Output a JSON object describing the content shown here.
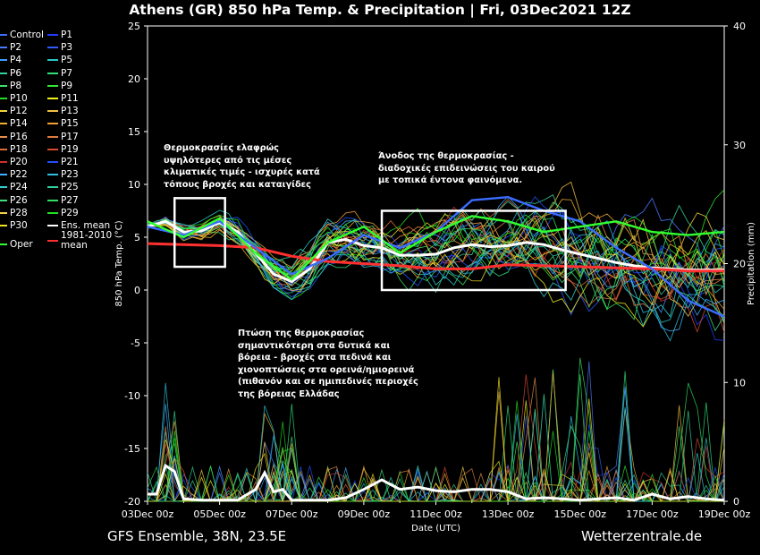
{
  "title": "Athens  (GR)  850 hPa Temp. & Precipitation | Fri, 03Dec2021 12Z",
  "footer_left": "GFS Ensemble, 38N, 23.5E",
  "footer_right": "Wetterzentrale.de",
  "annotations": [
    {
      "text_lines": [
        "Θερμοκρασίες ελαφρώς",
        "υψηλότερες από τις μέσες",
        "κλιματικές τιμές - ισχυρές κατά",
        "τόπους βροχές και καταιγίδες"
      ]
    },
    {
      "text_lines": [
        "Άνοδος της θερμοκρασίας -",
        "διαδοχικές επιδεινώσεις του καιρού",
        "με τοπικά έντονα φαινόμενα."
      ]
    },
    {
      "text_lines": [
        "Πτώση της θερμοκρασίας",
        "σημαντικότερη στα δυτικά και",
        "βόρεια - βροχές στα πεδινά και",
        "χιονοπτώσεις στα ορεινά/ημιορεινά",
        "(πιθανόν και σε ημιπεδινές περιοχές",
        "της βόρειας Ελλάδας"
      ]
    }
  ],
  "chart_data": {
    "type": "line",
    "xlabel": "Date (UTC)",
    "ylabel": "850 hPa Temp. (°C)",
    "y2label": "Precipitation (mm)",
    "x_ticks": [
      "03Dec 00z",
      "05Dec 00z",
      "07Dec 00z",
      "09Dec 00z",
      "11Dec 00z",
      "13Dec 00z",
      "15Dec 00z",
      "17Dec 00z",
      "19Dec 00z"
    ],
    "x_range_days": [
      0,
      16
    ],
    "ylim": [
      -20,
      25
    ],
    "y_ticks": [
      25,
      20,
      15,
      10,
      5,
      0,
      -5,
      -10,
      -15,
      -20
    ],
    "y2lim": [
      0,
      40
    ],
    "y2_ticks": [
      40,
      30,
      20,
      10,
      0
    ],
    "grid": false,
    "legend_position": "left",
    "legend": [
      {
        "label": "Control",
        "color": "#3b6cff"
      },
      {
        "label": "P1",
        "color": "#1f3cff"
      },
      {
        "label": "P2",
        "color": "#4a78ff"
      },
      {
        "label": "P3",
        "color": "#2f5cff"
      },
      {
        "label": "P4",
        "color": "#3c9dff"
      },
      {
        "label": "P5",
        "color": "#29c7c7"
      },
      {
        "label": "P6",
        "color": "#35d39a"
      },
      {
        "label": "P7",
        "color": "#2fe07a"
      },
      {
        "label": "P8",
        "color": "#3fe06a"
      },
      {
        "label": "P9",
        "color": "#33e633"
      },
      {
        "label": "P10",
        "color": "#22dd22"
      },
      {
        "label": "P11",
        "color": "#f2f21a"
      },
      {
        "label": "P12",
        "color": "#f2d23a"
      },
      {
        "label": "P13",
        "color": "#f0c040"
      },
      {
        "label": "P14",
        "color": "#f0b030"
      },
      {
        "label": "P15",
        "color": "#f0a030"
      },
      {
        "label": "P16",
        "color": "#e8904a"
      },
      {
        "label": "P17",
        "color": "#e07a40"
      },
      {
        "label": "P18",
        "color": "#e06a3a"
      },
      {
        "label": "P19",
        "color": "#d84a30"
      },
      {
        "label": "P20",
        "color": "#d03030"
      },
      {
        "label": "P21",
        "color": "#2050ff"
      },
      {
        "label": "P22",
        "color": "#3fb0ff"
      },
      {
        "label": "P23",
        "color": "#30c0e0"
      },
      {
        "label": "P24",
        "color": "#30d0d0"
      },
      {
        "label": "P25",
        "color": "#30d0a0"
      },
      {
        "label": "P26",
        "color": "#40e080"
      },
      {
        "label": "P27",
        "color": "#30e060"
      },
      {
        "label": "P28",
        "color": "#f0d040"
      },
      {
        "label": "P29",
        "color": "#20e020"
      },
      {
        "label": "P30",
        "color": "#f0e020"
      },
      {
        "label": "Ens. mean",
        "color": "#ffffff"
      },
      {
        "label": "1981-2010 mean",
        "color": "#ff3030"
      },
      {
        "label": "Oper",
        "color": "#30ff30"
      }
    ],
    "series": [
      {
        "name": "Ens. mean",
        "axis": "temp",
        "x": [
          0,
          0.5,
          1,
          1.5,
          2,
          2.5,
          3,
          3.5,
          4,
          4.5,
          5,
          5.5,
          6,
          6.5,
          7,
          7.5,
          8,
          8.5,
          9,
          9.5,
          10,
          10.5,
          11,
          11.5,
          12,
          12.5,
          13,
          13.5,
          14,
          14.5,
          15,
          15.5,
          16
        ],
        "y": [
          6,
          6.5,
          5.5,
          5.6,
          6.4,
          5.5,
          3.5,
          1.5,
          0.8,
          2,
          4.5,
          4.8,
          4.2,
          4,
          3.3,
          3.3,
          3.4,
          4,
          4.3,
          4.1,
          4.2,
          4.5,
          4.3,
          3.8,
          3.4,
          3,
          2.6,
          2.3,
          2.1,
          2.0,
          1.9,
          1.9,
          1.9
        ]
      },
      {
        "name": "1981-2010 mean",
        "axis": "temp",
        "x": [
          0,
          1,
          2,
          3,
          4,
          5,
          6,
          7,
          8,
          9,
          10,
          11,
          12,
          13,
          14,
          15,
          16
        ],
        "y": [
          4.4,
          4.3,
          4.2,
          4.0,
          3.2,
          2.7,
          2.5,
          2.3,
          2.0,
          2.0,
          2.4,
          2.3,
          2.2,
          2.1,
          2.0,
          1.8,
          1.8
        ]
      },
      {
        "name": "Control",
        "axis": "temp",
        "x": [
          0,
          1,
          2,
          3,
          4,
          5,
          6,
          7,
          8,
          9,
          10,
          11,
          12,
          13,
          14,
          15,
          16
        ],
        "y": [
          6,
          5.2,
          6.5,
          4,
          1.5,
          3,
          5.2,
          4,
          5.5,
          8.5,
          8.8,
          7.5,
          6.5,
          4,
          2,
          -1,
          -2.5
        ]
      },
      {
        "name": "Oper",
        "axis": "temp",
        "x": [
          0,
          1,
          2,
          3,
          4,
          5,
          6,
          7,
          8,
          9,
          10,
          11,
          12,
          13,
          14,
          15,
          16
        ],
        "y": [
          6.5,
          5,
          6.8,
          3.5,
          1,
          4.5,
          6,
          3.5,
          5.5,
          7,
          6.5,
          5.5,
          6,
          6.5,
          5.5,
          5.2,
          5.5
        ]
      },
      {
        "name": "Ens. mean",
        "axis": "precip",
        "x": [
          0,
          0.25,
          0.5,
          0.75,
          1,
          1.5,
          2,
          2.5,
          3,
          3.25,
          3.5,
          3.75,
          4,
          4.5,
          5,
          5.5,
          6,
          6.5,
          7,
          7.5,
          8,
          8.5,
          9,
          9.5,
          10,
          10.5,
          11,
          11.5,
          12,
          12.5,
          13,
          13.5,
          14,
          14.5,
          15,
          15.5,
          16
        ],
        "y": [
          0.6,
          0.6,
          3.0,
          2.5,
          0.2,
          0.1,
          0.1,
          0.1,
          1.0,
          2.4,
          0.8,
          1.0,
          0.1,
          0.1,
          0.1,
          0.3,
          1.0,
          1.8,
          1.0,
          1.2,
          0.9,
          0.8,
          1.0,
          1.0,
          0.8,
          0.2,
          0.3,
          0.2,
          0.1,
          0.2,
          0.3,
          0.1,
          0.6,
          0.2,
          0.4,
          0.2,
          0.1
        ]
      }
    ]
  }
}
